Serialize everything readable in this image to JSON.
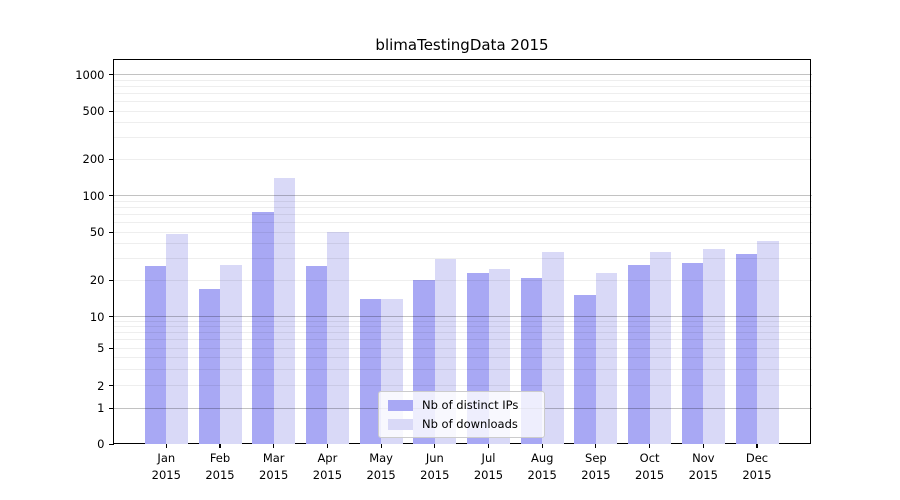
{
  "chart_data": {
    "type": "bar",
    "title": "blimaTestingData 2015",
    "categories": [
      "Jan",
      "Feb",
      "Mar",
      "Apr",
      "May",
      "Jun",
      "Jul",
      "Aug",
      "Sep",
      "Oct",
      "Nov",
      "Dec"
    ],
    "year": "2015",
    "series": [
      {
        "name": "Nb of distinct IPs",
        "color": "#a8a8f4",
        "values": [
          26,
          17,
          73,
          26,
          14,
          20,
          23,
          21,
          15,
          27,
          28,
          33
        ]
      },
      {
        "name": "Nb of downloads",
        "color": "#d9d9f7",
        "values": [
          48,
          27,
          140,
          50,
          14,
          30,
          25,
          34,
          23,
          34,
          36,
          42
        ]
      }
    ],
    "y_axis": {
      "scale": "symlog",
      "tick_labels": [
        0,
        1,
        2,
        5,
        10,
        20,
        50,
        100,
        200,
        500,
        1000
      ],
      "major_gridlines": [
        1,
        10,
        100,
        1000
      ],
      "minor_gridline_bases": [
        2,
        3,
        4,
        5,
        6,
        7,
        8,
        9
      ]
    },
    "xlabel": "",
    "ylabel": "",
    "grid": "horizontal",
    "legend_position": "inside-bottom-center"
  },
  "colors": {
    "background": "#ffffff",
    "bar_ips": "#a8a8f4",
    "bar_downloads": "#d9d9f7",
    "frame": "#000000",
    "grid_major": "rgba(0,0,0,0.24)",
    "grid_minor": "rgba(0,0,0,0.065)",
    "text": "#000000",
    "legend_border": "#cccccc"
  }
}
